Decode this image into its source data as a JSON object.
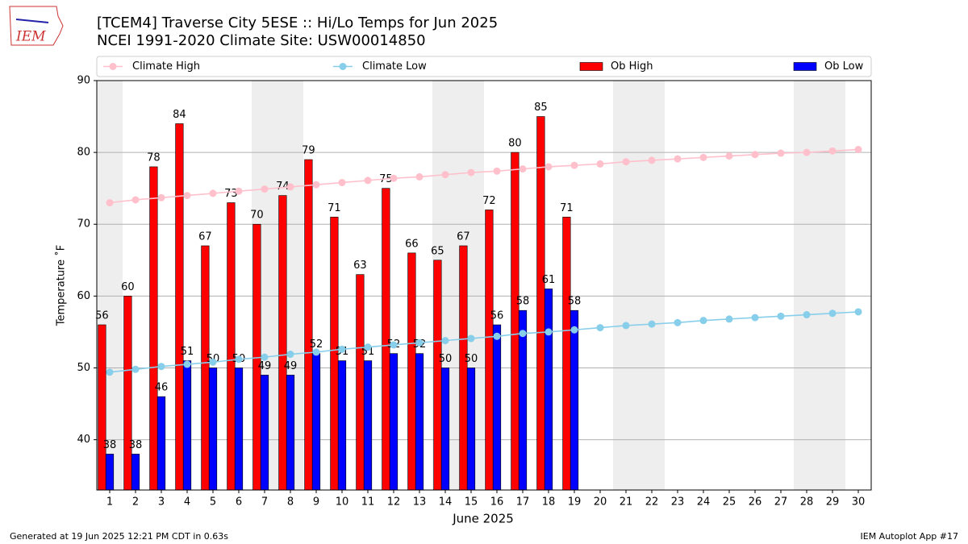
{
  "logo": "IEM",
  "footer_left": "Generated at 19 Jun 2025 12:21 PM CDT in 0.63s",
  "footer_right": "IEM Autoplot App #17",
  "chart_data": {
    "type": "bar_line",
    "title": "[TCEM4] Traverse City 5ESE :: Hi/Lo Temps for Jun 2025",
    "subtitle": "NCEI 1991-2020 Climate Site: USW00014850",
    "x_label": "June 2025",
    "y_label": "Temperature ˚F",
    "x": [
      1,
      2,
      3,
      4,
      5,
      6,
      7,
      8,
      9,
      10,
      11,
      12,
      13,
      14,
      15,
      16,
      17,
      18,
      19,
      20,
      21,
      22,
      23,
      24,
      25,
      26,
      27,
      28,
      29,
      30
    ],
    "xlim": [
      0.5,
      30.5
    ],
    "xticks": [
      1,
      2,
      3,
      4,
      5,
      6,
      7,
      8,
      9,
      10,
      11,
      12,
      13,
      14,
      15,
      16,
      17,
      18,
      19,
      20,
      21,
      22,
      23,
      24,
      25,
      26,
      27,
      28,
      29,
      30
    ],
    "ylim": [
      33,
      90
    ],
    "yticks": [
      40,
      50,
      60,
      70,
      80,
      90
    ],
    "grid": true,
    "legend": "top",
    "series": [
      {
        "name": "Climate High",
        "kind": "line",
        "color": "#ffc0cb",
        "values": [
          73.0,
          73.4,
          73.7,
          74.0,
          74.3,
          74.6,
          74.9,
          75.2,
          75.5,
          75.8,
          76.1,
          76.4,
          76.6,
          76.9,
          77.2,
          77.4,
          77.7,
          78.0,
          78.2,
          78.4,
          78.7,
          78.9,
          79.1,
          79.3,
          79.5,
          79.7,
          79.9,
          80.0,
          80.2,
          80.4
        ]
      },
      {
        "name": "Climate Low",
        "kind": "line",
        "color": "#87ceeb",
        "values": [
          49.4,
          49.8,
          50.2,
          50.5,
          50.8,
          51.2,
          51.5,
          51.9,
          52.2,
          52.6,
          52.9,
          53.2,
          53.5,
          53.8,
          54.1,
          54.4,
          54.8,
          55.0,
          55.3,
          55.6,
          55.9,
          56.1,
          56.3,
          56.6,
          56.8,
          57.0,
          57.2,
          57.4,
          57.6,
          57.8
        ]
      },
      {
        "name": "Ob High",
        "kind": "bar",
        "color": "#ff0000",
        "values": [
          56,
          60,
          78,
          84,
          67,
          73,
          70,
          74,
          79,
          71,
          63,
          75,
          66,
          65,
          67,
          72,
          80,
          85,
          71,
          null,
          null,
          null,
          null,
          null,
          null,
          null,
          null,
          null,
          null,
          null
        ]
      },
      {
        "name": "Ob Low",
        "kind": "bar",
        "color": "#0000ff",
        "values": [
          38,
          38,
          46,
          51,
          50,
          50,
          49,
          49,
          52,
          51,
          51,
          52,
          52,
          50,
          50,
          56,
          58,
          61,
          58,
          null,
          null,
          null,
          null,
          null,
          null,
          null,
          null,
          null,
          null,
          null
        ]
      }
    ]
  }
}
